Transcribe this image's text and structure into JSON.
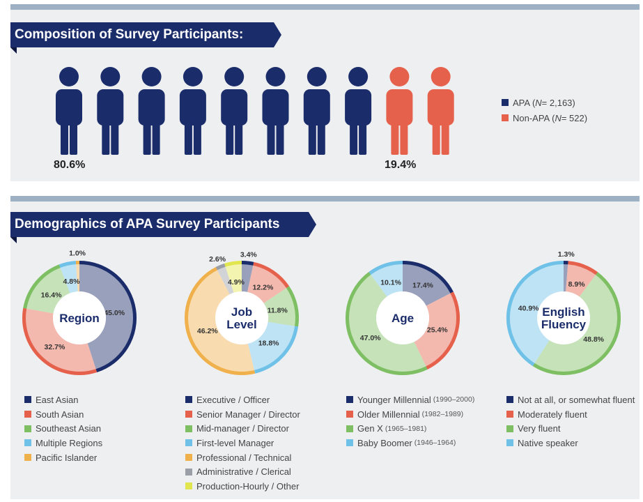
{
  "composition": {
    "title": "Composition of Survey Participants:",
    "apa_pct_label": "80.6%",
    "nonapa_pct_label": "19.4%",
    "people_total": 10,
    "people_apa": 8,
    "legend": [
      {
        "name_pre": "APA (",
        "n_italic": "N",
        "name_post": " = 2,163)",
        "color": "#1b2c6b"
      },
      {
        "name_pre": "Non-APA (",
        "n_italic": "N",
        "name_post": " = 522)",
        "color": "#e5614c"
      }
    ]
  },
  "demographics": {
    "title": "Demographics of APA Survey Participants"
  },
  "chart_data": [
    {
      "type": "pie",
      "title": "Region",
      "categories": [
        "East Asian",
        "South Asian",
        "Southeast Asian",
        "Multiple Regions",
        "Pacific Islander"
      ],
      "values": [
        45.0,
        32.7,
        16.4,
        4.8,
        1.0
      ],
      "value_labels": [
        "45.0%",
        "32.7%",
        "16.4%",
        "4.8%",
        "1.0%"
      ],
      "colors": [
        "#1b2c6b",
        "#e5614c",
        "#7dbf62",
        "#6fc1e8",
        "#f0b14d"
      ]
    },
    {
      "type": "pie",
      "title": "Job Level",
      "categories": [
        "Executive / Officer",
        "Senior Manager / Director",
        "Mid-manager / Director",
        "First-level Manager",
        "Professional / Technical",
        "Administrative / Clerical",
        "Production-Hourly / Other"
      ],
      "values": [
        3.4,
        12.2,
        11.8,
        18.8,
        46.2,
        2.6,
        4.9
      ],
      "value_labels": [
        "3.4%",
        "12.2%",
        "11.8%",
        "18.8%",
        "46.2%",
        "2.6%",
        "4.9%"
      ],
      "colors": [
        "#1b2c6b",
        "#e5614c",
        "#7dbf62",
        "#6fc1e8",
        "#f0b14d",
        "#9a9ea6",
        "#e2e64e"
      ]
    },
    {
      "type": "pie",
      "title": "Age",
      "categories": [
        "Younger Millennial",
        "Older Millennial",
        "Gen X",
        "Baby Boomer"
      ],
      "notes": [
        "(1990–2000)",
        "(1982–1989)",
        "(1965–1981)",
        "(1946–1964)"
      ],
      "values": [
        17.4,
        25.4,
        47.0,
        10.1
      ],
      "value_labels": [
        "17.4%",
        "25.4%",
        "47.0%",
        "10.1%"
      ],
      "colors": [
        "#1b2c6b",
        "#e5614c",
        "#7dbf62",
        "#6fc1e8"
      ]
    },
    {
      "type": "pie",
      "title": "English Fluency",
      "categories": [
        "Not at all, or somewhat fluent",
        "Moderately fluent",
        "Very fluent",
        "Native speaker"
      ],
      "values": [
        1.3,
        8.9,
        48.8,
        40.9
      ],
      "value_labels": [
        "1.3%",
        "8.9%",
        "48.8%",
        "40.9%"
      ],
      "colors": [
        "#1b2c6b",
        "#e5614c",
        "#7dbf62",
        "#6fc1e8"
      ]
    }
  ]
}
